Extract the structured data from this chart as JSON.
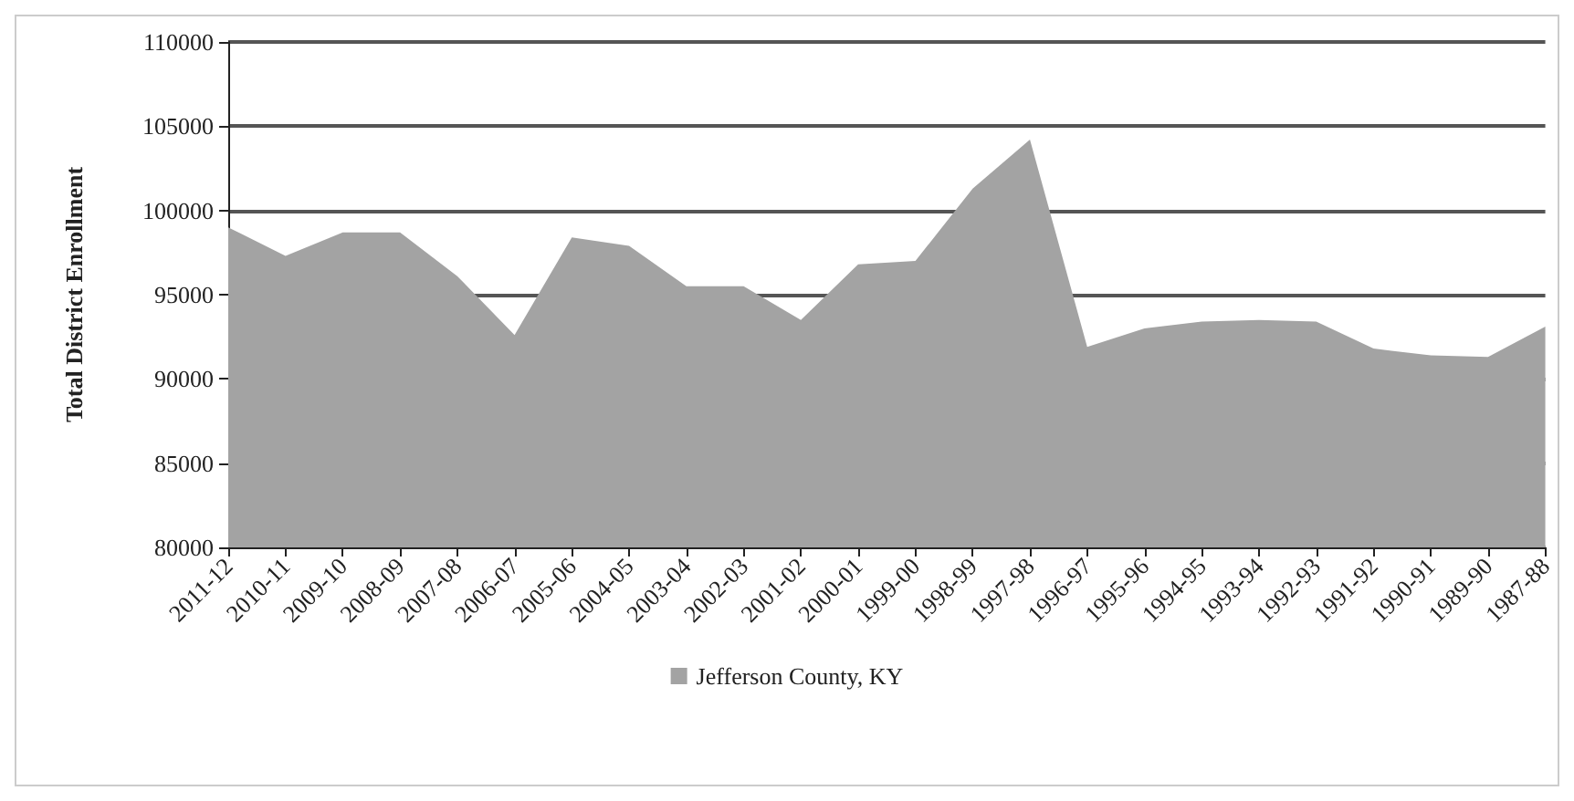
{
  "chart_data": {
    "type": "area",
    "ylabel": "Total District Enrollment",
    "categories": [
      "2011-12",
      "2010-11",
      "2009-10",
      "2008-09",
      "2007-08",
      "2006-07",
      "2005-06",
      "2004-05",
      "2003-04",
      "2002-03",
      "2001-02",
      "2000-01",
      "1999-00",
      "1998-99",
      "1997-98",
      "1996-97",
      "1995-96",
      "1994-95",
      "1993-94",
      "1992-93",
      "1991-92",
      "1990-91",
      "1989-90",
      "1987-88"
    ],
    "series": [
      {
        "name": "Jefferson County, KY",
        "color": "#a3a3a3",
        "values": [
          99000,
          97300,
          98700,
          98700,
          96100,
          92600,
          98400,
          97900,
          95500,
          95500,
          93500,
          96800,
          97000,
          101300,
          104200,
          91900,
          93000,
          93400,
          93500,
          93400,
          91800,
          91400,
          91300,
          93100
        ]
      }
    ],
    "ylim": [
      80000,
      110000
    ],
    "yticks": [
      80000,
      85000,
      90000,
      95000,
      100000,
      105000,
      110000
    ],
    "grid": "y",
    "legend": "bottom"
  }
}
